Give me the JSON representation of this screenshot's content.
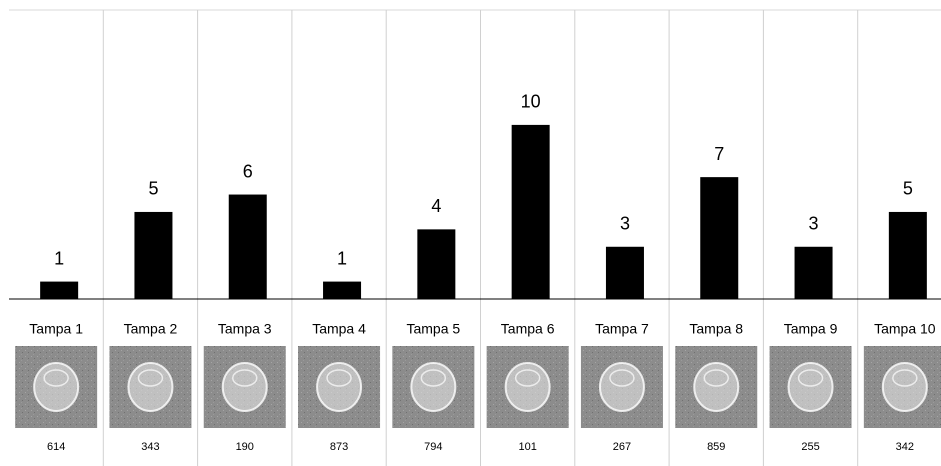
{
  "chart_data": {
    "type": "bar",
    "categories": [
      "Tampa 1",
      "Tampa 2",
      "Tampa 3",
      "Tampa 4",
      "Tampa 5",
      "Tampa 6",
      "Tampa 7",
      "Tampa 8",
      "Tampa 9",
      "Tampa 10"
    ],
    "values": [
      1,
      5,
      6,
      1,
      4,
      10,
      3,
      7,
      3,
      5
    ],
    "codes": [
      "614",
      "343",
      "190",
      "873",
      "794",
      "101",
      "267",
      "859",
      "255",
      "342"
    ],
    "color": "#000000",
    "ylim": [
      0,
      16.6
    ]
  }
}
